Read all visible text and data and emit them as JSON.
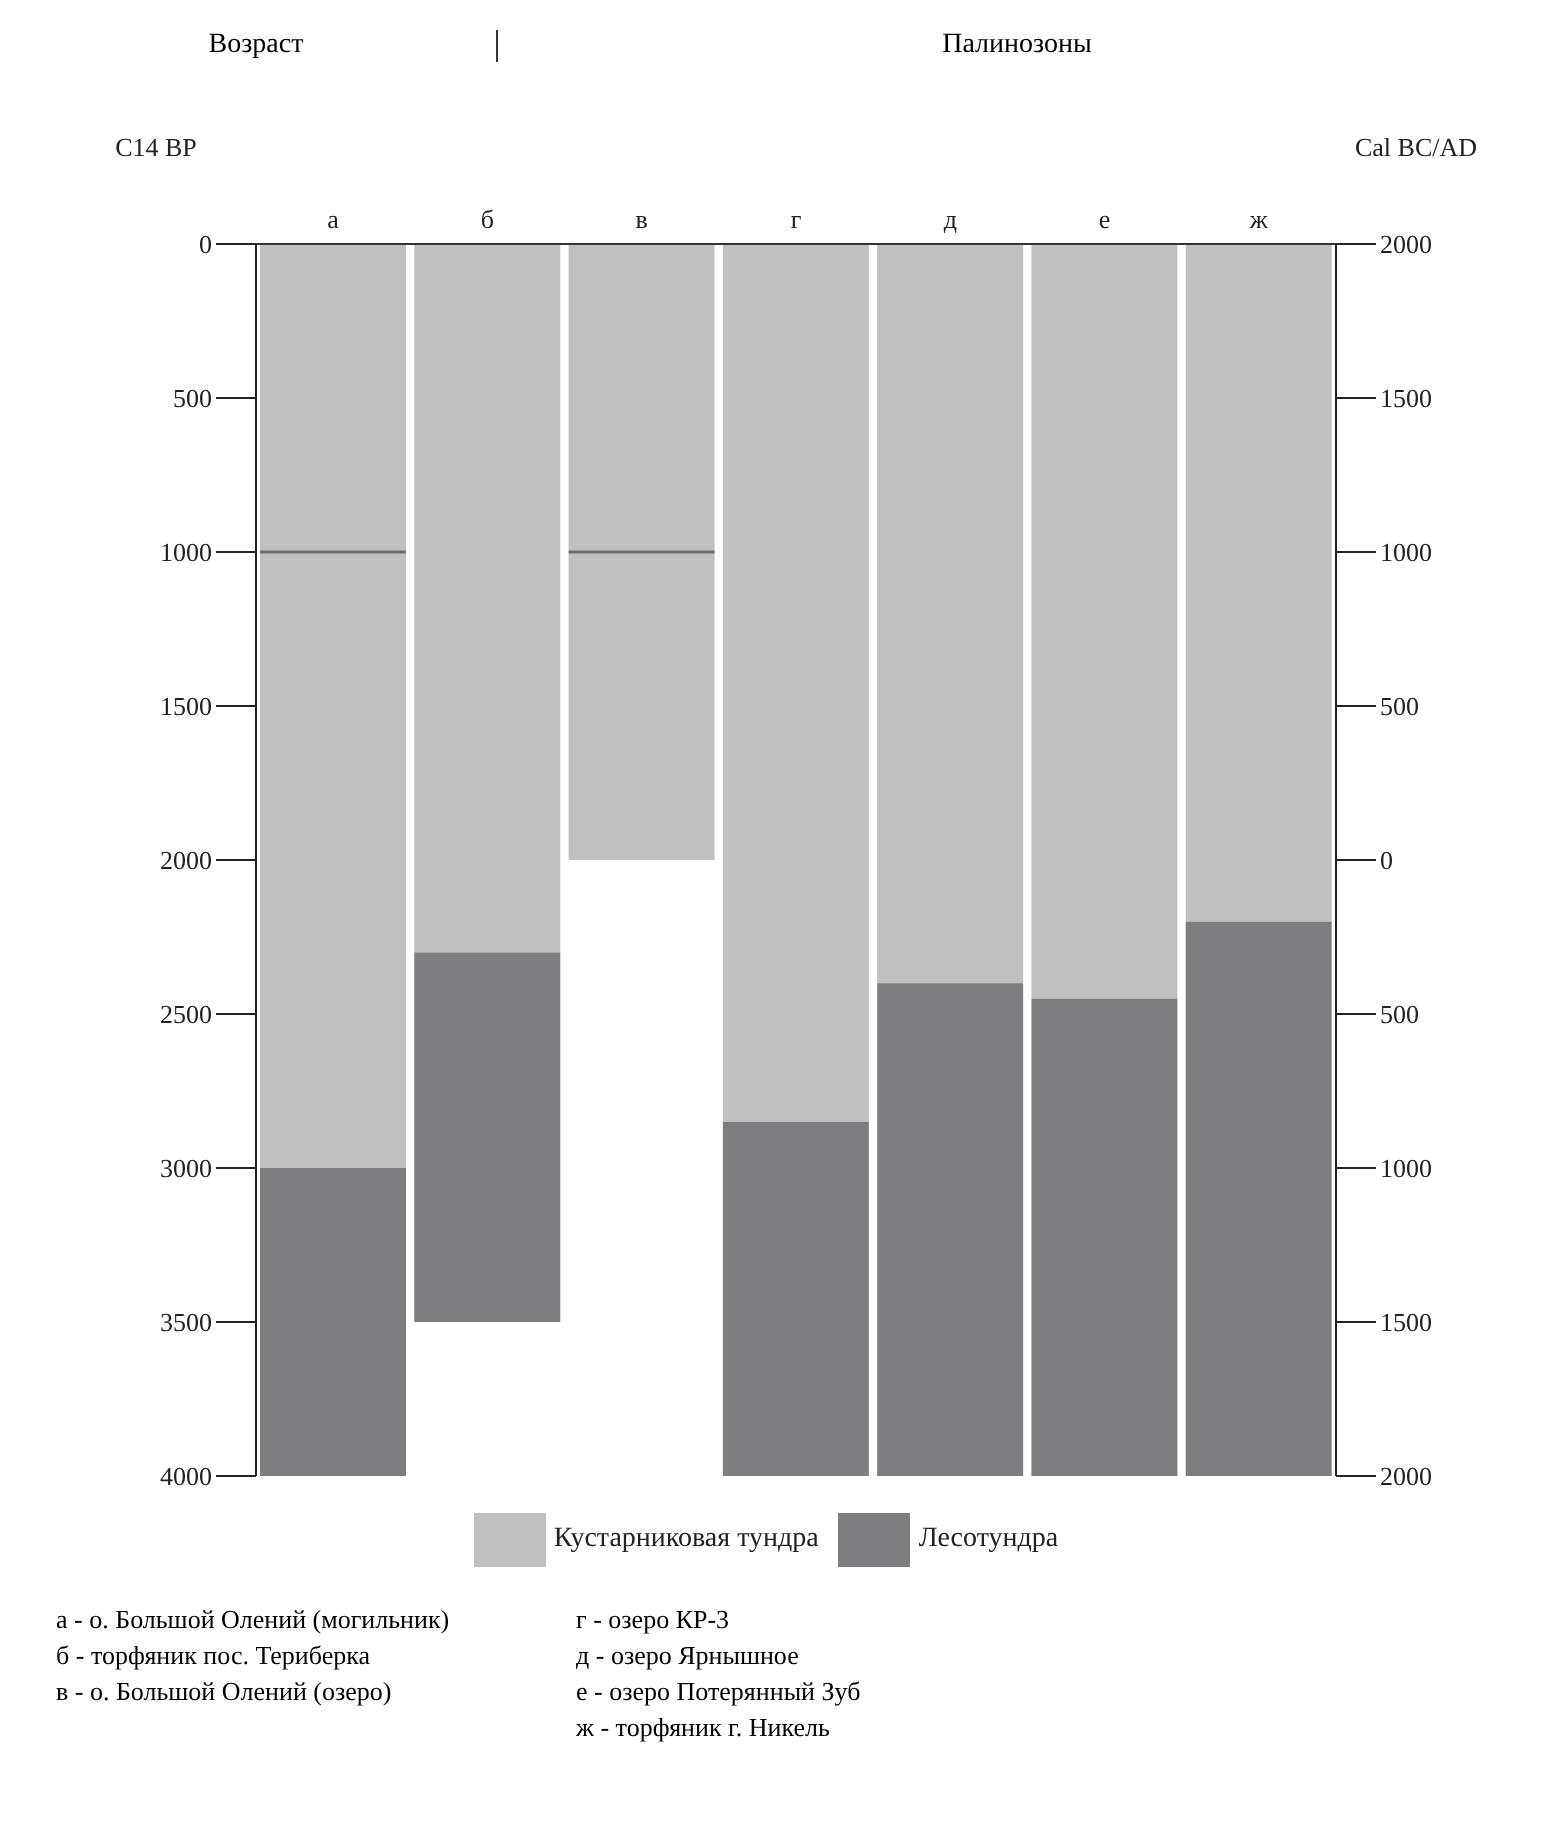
{
  "chart_data": {
    "type": "bar",
    "stacked": true,
    "title": "Палинозоны",
    "subtitle": "Возраст",
    "categories": [
      "а",
      "б",
      "в",
      "г",
      "д",
      "е",
      "ж"
    ],
    "ylabel": "C14 BP",
    "y2label": "Cal BC/AD",
    "ylim": [
      4000,
      0
    ],
    "yticks": [
      0,
      500,
      1000,
      1500,
      2000,
      2500,
      3000,
      3500,
      4000
    ],
    "y2lim": [
      -2000,
      2000
    ],
    "y2ticks": [
      {
        "value": 2000,
        "label": "2000"
      },
      {
        "value": 1500,
        "label": "1500"
      },
      {
        "value": 1000,
        "label": "1000"
      },
      {
        "value": 500,
        "label": "500"
      },
      {
        "value": 0,
        "label": "0"
      },
      {
        "value": -500,
        "label": "500"
      },
      {
        "value": -1000,
        "label": "1000"
      },
      {
        "value": -1500,
        "label": "1500"
      },
      {
        "value": -2000,
        "label": "2000"
      }
    ],
    "series": [
      {
        "name": "Кустарниковая тундра",
        "color": "#c0c0c2",
        "values": [
          1000,
          2300,
          1000,
          2850,
          2400,
          2450,
          2200
        ]
      },
      {
        "color": "#c0c0c2",
        "values": [
          2000,
          null,
          1000,
          null,
          null,
          null,
          null
        ]
      },
      {
        "name": "Лесотундра",
        "color": "#7d7d82",
        "values": [
          1000,
          1200,
          null,
          1150,
          1600,
          1550,
          1800
        ]
      }
    ],
    "legend": "bottom",
    "grid": false,
    "annotations": [
      "а - о. Большой Олений (могильник)",
      "б - торфяник пос. Териберка",
      "в - о. Большой Олений (озеро)",
      "г - озеро КР-3",
      "д - озеро Ярнышное",
      "е - озеро Потерянный Зуб",
      "ж - торфяник г. Никель"
    ]
  }
}
